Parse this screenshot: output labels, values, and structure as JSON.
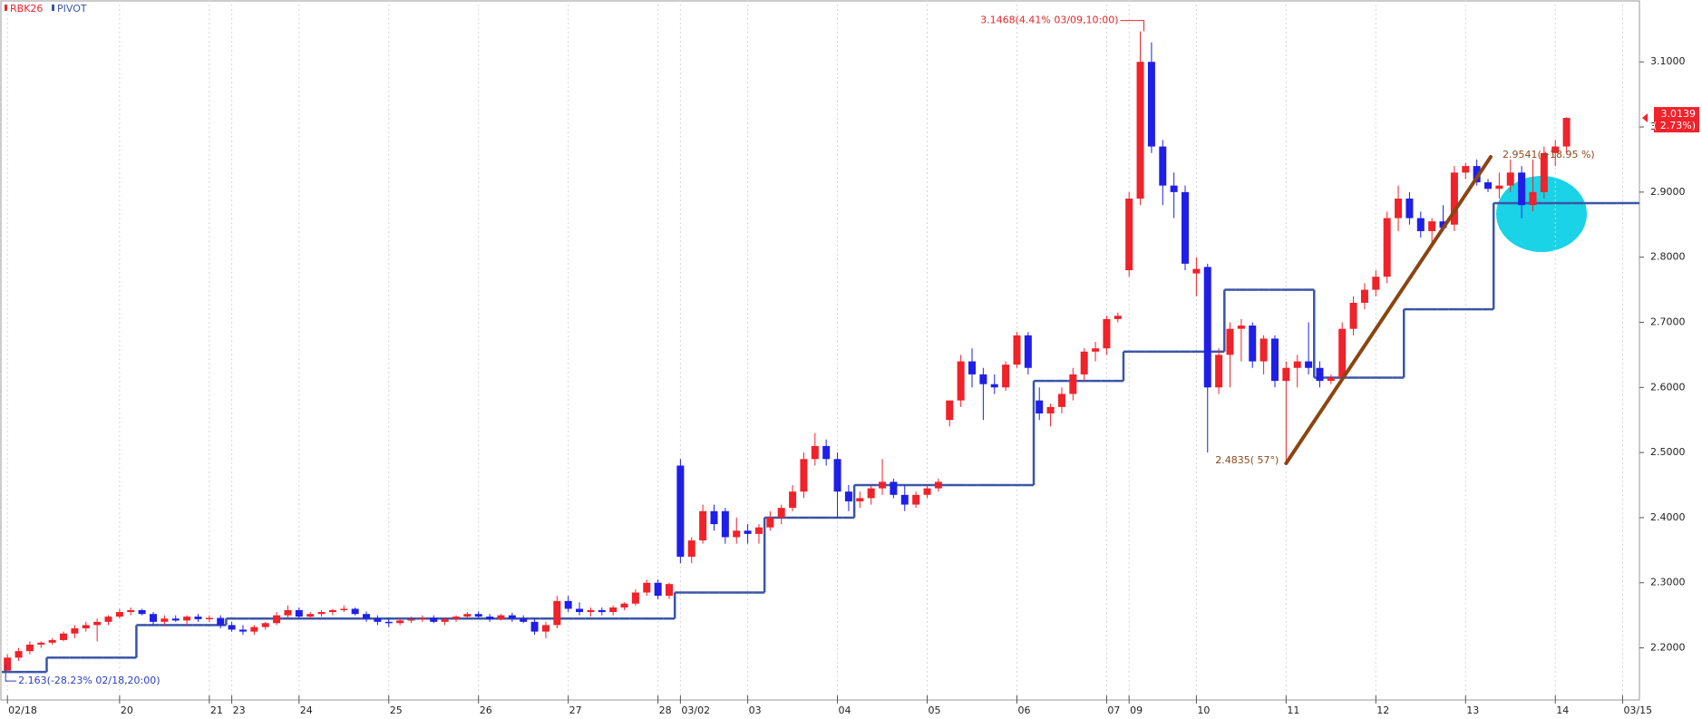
{
  "chart_data": {
    "type": "candlestick",
    "categories": [
      "02/18",
      null,
      null,
      null,
      null,
      null,
      null,
      null,
      null,
      null,
      "20",
      null,
      null,
      null,
      null,
      null,
      null,
      null,
      "21",
      null,
      "23",
      null,
      null,
      null,
      null,
      null,
      "24",
      null,
      null,
      null,
      null,
      null,
      null,
      null,
      "25",
      null,
      null,
      null,
      null,
      null,
      null,
      null,
      "26",
      null,
      null,
      null,
      null,
      null,
      null,
      null,
      "27",
      null,
      null,
      null,
      null,
      null,
      null,
      null,
      "28",
      null,
      "03/02",
      null,
      null,
      null,
      null,
      null,
      "03",
      null,
      null,
      null,
      null,
      null,
      null,
      null,
      "04",
      null,
      null,
      null,
      null,
      null,
      null,
      null,
      "05",
      null,
      null,
      null,
      null,
      null,
      null,
      null,
      "06",
      null,
      null,
      null,
      null,
      null,
      null,
      null,
      "07",
      null,
      "09",
      null,
      null,
      null,
      null,
      null,
      "10",
      null,
      null,
      null,
      null,
      null,
      null,
      null,
      "11",
      null,
      null,
      null,
      null,
      null,
      null,
      null,
      "12",
      null,
      null,
      null,
      null,
      null,
      null,
      null,
      "13",
      null,
      null,
      null,
      null,
      null,
      null,
      null,
      "14",
      null,
      null,
      null,
      null,
      null,
      "03/15"
    ],
    "series": [
      {
        "name": "RBK26",
        "type": "candlestick",
        "up_color": "#f0222a",
        "down_color": "#1f1fe8",
        "open": [
          2.165,
          2.185,
          2.195,
          2.205,
          2.208,
          2.212,
          2.222,
          2.23,
          2.235,
          2.24,
          2.248,
          2.255,
          2.258,
          2.252,
          2.24,
          2.245,
          2.242,
          2.248,
          2.244,
          2.246,
          2.235,
          2.228,
          2.225,
          2.232,
          2.238,
          2.25,
          2.258,
          2.248,
          2.252,
          2.255,
          2.258,
          2.26,
          2.252,
          2.245,
          2.24,
          2.238,
          2.242,
          2.244,
          2.246,
          2.24,
          2.244,
          2.248,
          2.252,
          2.248,
          2.244,
          2.25,
          2.245,
          2.24,
          2.225,
          2.235,
          2.272,
          2.26,
          2.255,
          2.258,
          2.255,
          2.262,
          2.268,
          2.285,
          2.3,
          2.28,
          2.48,
          2.34,
          2.365,
          2.41,
          2.41,
          2.37,
          2.38,
          2.375,
          2.385,
          2.4,
          2.415,
          2.44,
          2.49,
          2.51,
          2.49,
          2.44,
          2.425,
          2.43,
          2.445,
          2.455,
          2.435,
          2.42,
          2.435,
          2.445,
          2.55,
          2.58,
          2.64,
          2.62,
          2.605,
          2.6,
          2.635,
          2.68,
          2.58,
          2.56,
          2.57,
          2.59,
          2.62,
          2.655,
          2.66,
          2.705,
          2.78,
          2.89,
          3.1,
          2.97,
          2.91,
          2.9,
          2.775,
          2.785,
          2.6,
          2.65,
          2.69,
          2.695,
          2.64,
          2.675,
          2.61,
          2.63,
          2.64,
          2.63,
          2.61,
          2.615,
          2.69,
          2.73,
          2.75,
          2.77,
          2.86,
          2.89,
          2.86,
          2.84,
          2.855,
          2.85,
          2.93,
          2.94,
          2.915,
          2.905,
          2.91,
          2.93,
          2.88,
          2.9,
          2.96,
          2.97,
          null,
          null,
          null,
          null,
          null
        ],
        "high": [
          2.19,
          2.2,
          2.21,
          2.21,
          2.215,
          2.225,
          2.235,
          2.24,
          2.245,
          2.25,
          2.26,
          2.262,
          2.26,
          2.255,
          2.25,
          2.25,
          2.25,
          2.252,
          2.25,
          2.25,
          2.24,
          2.235,
          2.235,
          2.24,
          2.255,
          2.265,
          2.262,
          2.255,
          2.258,
          2.26,
          2.265,
          2.262,
          2.256,
          2.25,
          2.245,
          2.245,
          2.248,
          2.25,
          2.25,
          2.246,
          2.25,
          2.255,
          2.256,
          2.252,
          2.252,
          2.254,
          2.25,
          2.245,
          2.24,
          2.28,
          2.28,
          2.27,
          2.262,
          2.262,
          2.265,
          2.27,
          2.29,
          2.305,
          2.305,
          2.3,
          2.49,
          2.37,
          2.42,
          2.42,
          2.415,
          2.4,
          2.39,
          2.39,
          2.41,
          2.42,
          2.45,
          2.5,
          2.53,
          2.52,
          2.5,
          2.45,
          2.44,
          2.45,
          2.49,
          2.46,
          2.45,
          2.44,
          2.45,
          2.46,
          2.58,
          2.65,
          2.66,
          2.63,
          2.62,
          2.64,
          2.685,
          2.685,
          2.6,
          2.575,
          2.6,
          2.63,
          2.66,
          2.67,
          2.71,
          2.715,
          2.9,
          3.1468,
          3.13,
          2.98,
          2.93,
          2.91,
          2.8,
          2.79,
          2.66,
          2.7,
          2.705,
          2.7,
          2.68,
          2.68,
          2.64,
          2.65,
          2.7,
          2.64,
          2.62,
          2.7,
          2.74,
          2.76,
          2.78,
          2.87,
          2.91,
          2.9,
          2.87,
          2.86,
          2.88,
          2.94,
          2.945,
          2.95,
          2.92,
          2.93,
          2.95,
          2.94,
          2.95,
          2.97,
          2.98,
          3.015,
          null,
          null,
          null,
          null,
          null
        ],
        "low": [
          2.163,
          2.18,
          2.19,
          2.2,
          2.205,
          2.21,
          2.215,
          2.225,
          2.21,
          2.235,
          2.245,
          2.25,
          2.25,
          2.235,
          2.235,
          2.24,
          2.235,
          2.24,
          2.24,
          2.23,
          2.225,
          2.22,
          2.22,
          2.228,
          2.235,
          2.245,
          2.245,
          2.245,
          2.248,
          2.25,
          2.255,
          2.25,
          2.24,
          2.235,
          2.232,
          2.235,
          2.238,
          2.24,
          2.238,
          2.235,
          2.24,
          2.245,
          2.245,
          2.24,
          2.242,
          2.24,
          2.238,
          2.22,
          2.215,
          2.23,
          2.255,
          2.25,
          2.248,
          2.25,
          2.25,
          2.258,
          2.265,
          2.28,
          2.275,
          2.275,
          2.33,
          2.33,
          2.36,
          2.38,
          2.36,
          2.36,
          2.36,
          2.36,
          2.38,
          2.39,
          2.41,
          2.43,
          2.48,
          2.48,
          2.4,
          2.41,
          2.415,
          2.42,
          2.435,
          2.43,
          2.41,
          2.415,
          2.43,
          2.44,
          2.54,
          2.57,
          2.6,
          2.55,
          2.59,
          2.595,
          2.63,
          2.62,
          2.55,
          2.54,
          2.56,
          2.58,
          2.61,
          2.64,
          2.65,
          2.7,
          2.77,
          2.88,
          2.96,
          2.88,
          2.86,
          2.78,
          2.74,
          2.5,
          2.59,
          2.6,
          2.64,
          2.63,
          2.62,
          2.6,
          2.4835,
          2.6,
          2.62,
          2.6,
          2.605,
          2.61,
          2.68,
          2.72,
          2.74,
          2.76,
          2.84,
          2.85,
          2.83,
          2.82,
          2.84,
          2.84,
          2.92,
          2.91,
          2.9,
          2.89,
          2.9,
          2.86,
          2.87,
          2.89,
          2.94,
          2.96,
          null,
          null,
          null,
          null,
          null
        ],
        "close": [
          2.185,
          2.195,
          2.205,
          2.208,
          2.212,
          2.222,
          2.23,
          2.235,
          2.24,
          2.248,
          2.255,
          2.258,
          2.252,
          2.24,
          2.245,
          2.242,
          2.248,
          2.244,
          2.246,
          2.235,
          2.228,
          2.225,
          2.232,
          2.238,
          2.25,
          2.258,
          2.248,
          2.252,
          2.255,
          2.258,
          2.26,
          2.252,
          2.245,
          2.24,
          2.238,
          2.242,
          2.244,
          2.246,
          2.24,
          2.244,
          2.248,
          2.252,
          2.248,
          2.244,
          2.25,
          2.245,
          2.24,
          2.225,
          2.235,
          2.272,
          2.26,
          2.255,
          2.258,
          2.255,
          2.262,
          2.268,
          2.285,
          2.3,
          2.28,
          2.298,
          2.34,
          2.365,
          2.41,
          2.39,
          2.37,
          2.38,
          2.375,
          2.385,
          2.4,
          2.415,
          2.44,
          2.49,
          2.51,
          2.49,
          2.44,
          2.425,
          2.43,
          2.445,
          2.455,
          2.435,
          2.42,
          2.435,
          2.445,
          2.455,
          2.58,
          2.64,
          2.62,
          2.605,
          2.6,
          2.635,
          2.68,
          2.63,
          2.56,
          2.57,
          2.59,
          2.62,
          2.655,
          2.66,
          2.705,
          2.71,
          2.89,
          3.1,
          2.97,
          2.91,
          2.9,
          2.79,
          2.782,
          2.6,
          2.65,
          2.69,
          2.695,
          2.64,
          2.675,
          2.61,
          2.63,
          2.64,
          2.63,
          2.61,
          2.615,
          2.69,
          2.73,
          2.75,
          2.77,
          2.86,
          2.89,
          2.86,
          2.84,
          2.855,
          2.845,
          2.93,
          2.94,
          2.915,
          2.905,
          2.91,
          2.93,
          2.88,
          2.9,
          2.96,
          2.97,
          3.0139,
          null,
          null,
          null,
          null,
          null
        ]
      },
      {
        "name": "PIVOT",
        "color": "#3a55a8",
        "values": [
          2.163,
          2.163,
          2.163,
          2.163,
          2.185,
          2.185,
          2.185,
          2.185,
          2.185,
          2.185,
          2.185,
          2.185,
          2.235,
          2.235,
          2.235,
          2.235,
          2.235,
          2.235,
          2.235,
          2.235,
          2.245,
          2.245,
          2.245,
          2.245,
          2.245,
          2.245,
          2.245,
          2.245,
          2.245,
          2.245,
          2.245,
          2.245,
          2.245,
          2.245,
          2.245,
          2.245,
          2.245,
          2.245,
          2.245,
          2.245,
          2.245,
          2.245,
          2.245,
          2.245,
          2.245,
          2.245,
          2.245,
          2.245,
          2.245,
          2.245,
          2.245,
          2.245,
          2.245,
          2.245,
          2.245,
          2.245,
          2.245,
          2.245,
          2.245,
          2.245,
          2.285,
          2.285,
          2.285,
          2.285,
          2.285,
          2.285,
          2.285,
          2.285,
          2.4,
          2.4,
          2.4,
          2.4,
          2.4,
          2.4,
          2.4,
          2.4,
          2.45,
          2.45,
          2.45,
          2.45,
          2.45,
          2.45,
          2.45,
          2.45,
          2.45,
          2.45,
          2.45,
          2.45,
          2.45,
          2.45,
          2.45,
          2.45,
          2.61,
          2.61,
          2.61,
          2.61,
          2.61,
          2.61,
          2.61,
          2.61,
          2.655,
          2.655,
          2.655,
          2.655,
          2.655,
          2.655,
          2.655,
          2.655,
          2.655,
          2.75,
          2.75,
          2.75,
          2.75,
          2.75,
          2.75,
          2.75,
          2.75,
          2.615,
          2.615,
          2.615,
          2.615,
          2.615,
          2.615,
          2.615,
          2.615,
          2.72,
          2.72,
          2.72,
          2.72,
          2.72,
          2.72,
          2.72,
          2.72,
          2.883,
          2.883,
          2.883,
          2.883,
          2.883,
          2.883,
          2.883,
          2.883,
          2.883,
          2.883,
          2.883,
          2.883
        ]
      }
    ],
    "ylim": [
      2.12,
      3.195
    ],
    "yticks": [
      {
        "value": 2.2,
        "label": "2.2000"
      },
      {
        "value": 2.3,
        "label": "2.3000"
      },
      {
        "value": 2.4,
        "label": "2.4000"
      },
      {
        "value": 2.5,
        "label": "2.5000"
      },
      {
        "value": 2.6,
        "label": "2.6000"
      },
      {
        "value": 2.7,
        "label": "2.7000"
      },
      {
        "value": 2.8,
        "label": "2.8000"
      },
      {
        "value": 2.9,
        "label": "2.9000"
      },
      {
        "value": 3.0,
        "label": "3.0000"
      },
      {
        "value": 3.1,
        "label": "3.1000"
      }
    ],
    "grid": true,
    "annotations": [
      {
        "label": "3.1468(4.41% 03/09,10:00)",
        "x": 101,
        "y": 3.1468,
        "color": "#e8262d"
      },
      {
        "label": "2.4835( 57°)",
        "x": 114,
        "y": 2.4835,
        "color": "#8b4a1c"
      },
      {
        "label": "2.9541(+18.95 %)",
        "x": 132,
        "y": 2.9541,
        "color": "#8b4a1c"
      },
      {
        "label": "2.163(-28.23% 02/18,20:00)",
        "x": 0,
        "y": 2.163,
        "color": "#2a3fbf"
      }
    ],
    "trendline_color": "#8b4513",
    "last": {
      "value": 3.0139,
      "change": "( 2.73%)",
      "color": "#f0222a"
    }
  }
}
